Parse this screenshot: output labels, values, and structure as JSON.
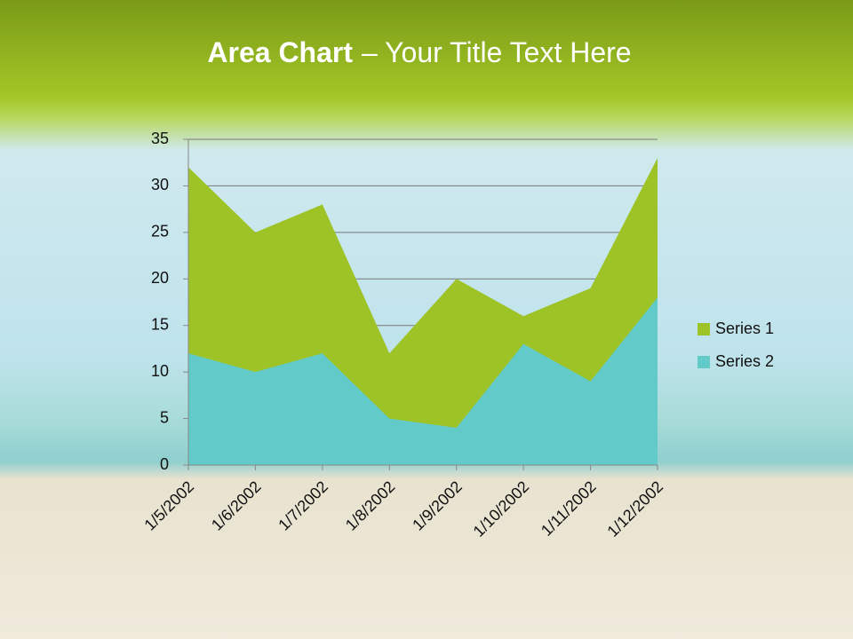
{
  "chart_data": {
    "type": "area",
    "title": "Area Chart",
    "title_rest": "– Your Title Text Here",
    "categories": [
      "1/5/2002",
      "1/6/2002",
      "1/7/2002",
      "1/8/2002",
      "1/9/2002",
      "1/10/2002",
      "1/11/2002",
      "1/12/2002"
    ],
    "series": [
      {
        "name": "Series 1",
        "color": "#9dc326",
        "values": [
          32,
          25,
          28,
          12,
          20,
          16,
          19,
          33
        ]
      },
      {
        "name": "Series 2",
        "color": "#62cbc9",
        "values": [
          12,
          10,
          12,
          5,
          4,
          13,
          9,
          18
        ]
      }
    ],
    "ylim": [
      0,
      35
    ],
    "yticks": [
      0,
      5,
      10,
      15,
      20,
      25,
      30,
      35
    ],
    "grid": true,
    "legend": "right"
  }
}
